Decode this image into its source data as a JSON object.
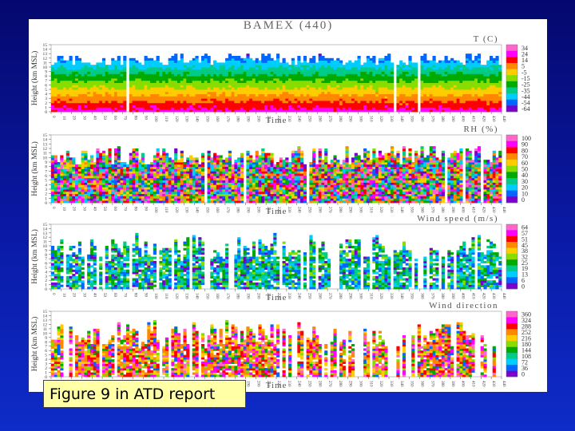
{
  "caption": "Figure 9 in ATD report",
  "chart_data": {
    "type": "heatmap",
    "title": "BAMEX (440)",
    "x_tick_labels": [
      "0",
      "10",
      "20",
      "30",
      "40",
      "50",
      "60",
      "70",
      "80",
      "90",
      "100",
      "110",
      "120",
      "130",
      "140",
      "150",
      "160",
      "170",
      "180",
      "190",
      "200",
      "210",
      "220",
      "230",
      "240",
      "250",
      "260",
      "270",
      "280",
      "290",
      "300",
      "310",
      "320",
      "330",
      "340",
      "350",
      "360",
      "370",
      "380",
      "390",
      "400",
      "410",
      "420",
      "430",
      "440"
    ],
    "y_ticks": [
      0,
      1,
      2,
      3,
      4,
      5,
      6,
      7,
      8,
      9,
      10,
      11,
      12,
      13,
      14,
      15
    ],
    "ylim": [
      0,
      15
    ],
    "xlim": [
      0,
      440
    ],
    "xlabel": "Time",
    "ylabel": "Height (km MSL)",
    "panels": [
      {
        "variable": "T (C)",
        "colorbar_ticks": [
          "34",
          "24",
          "14",
          "5",
          "-5",
          "-15",
          "-25",
          "-35",
          "-44",
          "-54",
          "-64"
        ],
        "colorbar_colors": [
          "#ff66cc",
          "#ff00ff",
          "#ff0000",
          "#ff8800",
          "#ffcc00",
          "#88dd00",
          "#00aa00",
          "#00cc88",
          "#00ccff",
          "#0066ff",
          "#7700cc"
        ]
      },
      {
        "variable": "RH (%)",
        "colorbar_ticks": [
          "100",
          "90",
          "80",
          "70",
          "60",
          "50",
          "40",
          "30",
          "20",
          "10",
          "0"
        ],
        "colorbar_colors": [
          "#ff66cc",
          "#ff00ff",
          "#ff0000",
          "#ff8800",
          "#ffcc00",
          "#88dd00",
          "#00aa00",
          "#00cc88",
          "#00ccff",
          "#0066ff",
          "#7700cc"
        ]
      },
      {
        "variable": "Wind speed (m/s)",
        "colorbar_ticks": [
          "64",
          "57",
          "51",
          "45",
          "38",
          "32",
          "25",
          "19",
          "13",
          "6",
          "0"
        ],
        "colorbar_colors": [
          "#ff66cc",
          "#ff00ff",
          "#ff0000",
          "#ff8800",
          "#ffcc00",
          "#88dd00",
          "#00aa00",
          "#00cc88",
          "#00ccff",
          "#0066ff",
          "#7700cc"
        ]
      },
      {
        "variable": "Wind direction",
        "colorbar_ticks": [
          "360",
          "324",
          "288",
          "252",
          "216",
          "180",
          "144",
          "108",
          "72",
          "36",
          "0"
        ],
        "colorbar_colors": [
          "#ff66cc",
          "#ff00ff",
          "#ff0000",
          "#ff8800",
          "#ffcc00",
          "#88dd00",
          "#00aa00",
          "#00cc88",
          "#00ccff",
          "#0066ff",
          "#7700cc"
        ]
      }
    ]
  }
}
